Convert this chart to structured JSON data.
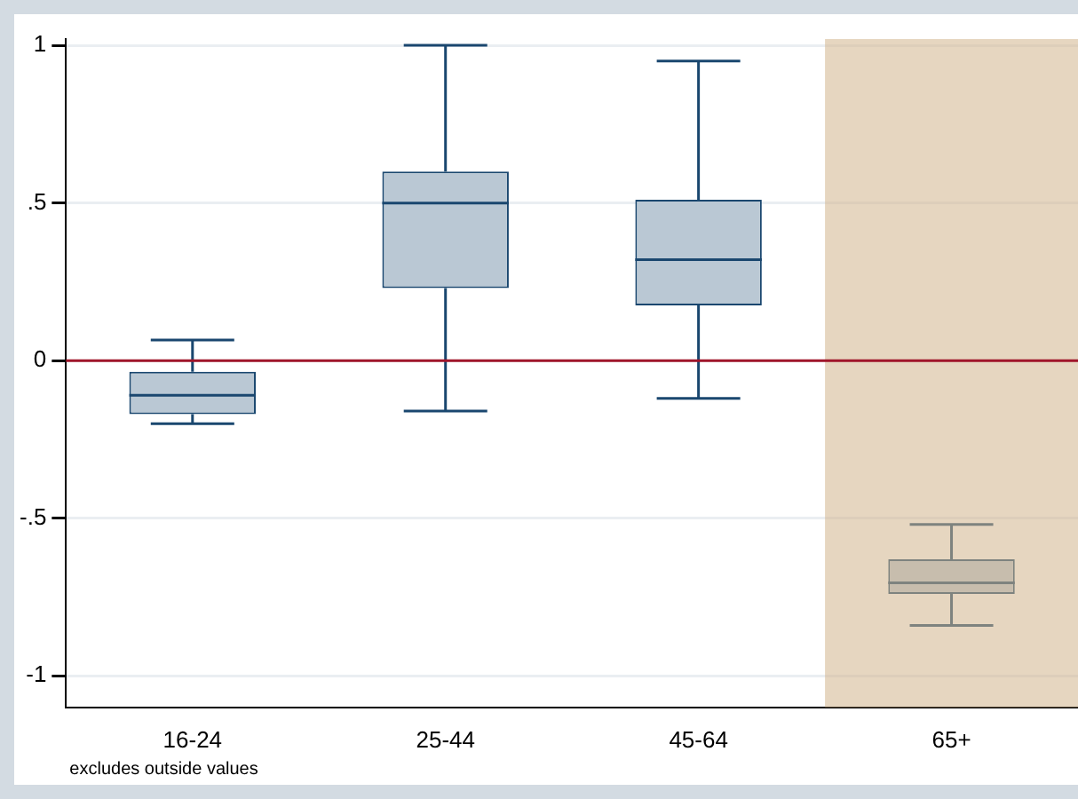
{
  "chart_data": {
    "type": "box",
    "categories": [
      "16-24",
      "25-44",
      "45-64",
      "65+"
    ],
    "series": [
      {
        "color": "#1a476f",
        "boxes": [
          {
            "low": -0.2,
            "q1": -0.17,
            "median": -0.11,
            "q3": -0.035,
            "high": 0.065
          },
          {
            "low": -0.16,
            "q1": 0.23,
            "median": 0.5,
            "q3": 0.6,
            "high": 1.0
          },
          {
            "low": -0.12,
            "q1": 0.175,
            "median": 0.32,
            "q3": 0.51,
            "high": 0.95
          },
          {
            "low": -0.84,
            "q1": -0.74,
            "median": -0.705,
            "q3": -0.63,
            "high": -0.52
          }
        ]
      }
    ],
    "ylim": [
      -1.1,
      1.02
    ],
    "yticks": [
      {
        "value": -1,
        "label": "-1"
      },
      {
        "value": -0.5,
        "label": "-.5"
      },
      {
        "value": 0,
        "label": "0"
      },
      {
        "value": 0.5,
        "label": ".5"
      },
      {
        "value": 1,
        "label": "1"
      }
    ],
    "grid": "y",
    "ref_lines": [
      {
        "axis": "y",
        "value": 0,
        "color": "#a0152a"
      }
    ],
    "bands": [
      {
        "axis": "x",
        "from": "65+",
        "to": "65+",
        "color": "#d2b48c"
      }
    ],
    "annotations": [
      "excludes outside values"
    ]
  }
}
